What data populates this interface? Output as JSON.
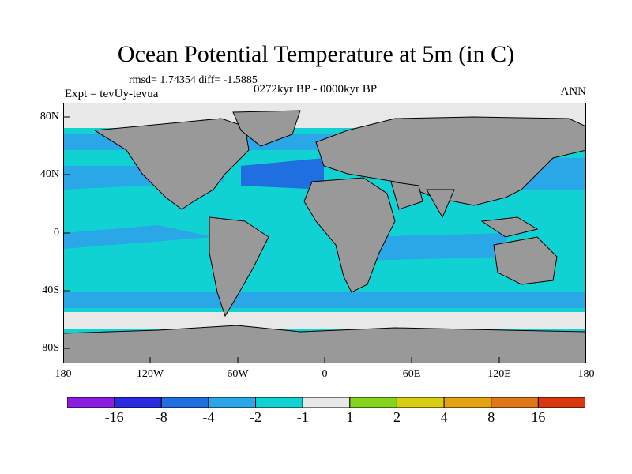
{
  "title": "Ocean Potential Temperature at 5m (in C)",
  "stats": "rmsd= 1.74354 diff= -1.5885",
  "experiment": "Expt = tevUy-tevua",
  "period": "0272kyr BP - 0000kyr BP",
  "season": "ANN",
  "map": {
    "projection": "cylindrical equidistant",
    "extent": {
      "lon": [
        -180,
        180
      ],
      "lat": [
        -90,
        90
      ]
    },
    "lat_ticks": [
      "80N",
      "40N",
      "0",
      "40S",
      "80S"
    ],
    "lon_ticks": [
      "180",
      "120W",
      "60W",
      "0",
      "60E",
      "120E",
      "180"
    ],
    "land_color": "#999999"
  },
  "colorbar": {
    "colors": [
      "#8a1de0",
      "#2a2ae0",
      "#1f6fe0",
      "#2aa7e6",
      "#10d2d2",
      "#e8e8e8",
      "#86d41f",
      "#d9cf12",
      "#e6a215",
      "#e07818",
      "#d9380f"
    ],
    "labels": [
      "-16",
      "-8",
      "-4",
      "-2",
      "-1",
      "1",
      "2",
      "4",
      "8",
      "16"
    ]
  }
}
